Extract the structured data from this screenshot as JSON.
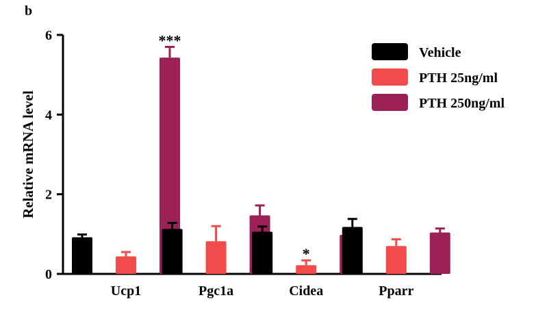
{
  "panel_label": "b",
  "chart_data": {
    "type": "bar",
    "title": "",
    "xlabel": "",
    "ylabel": "Relative mRNA level",
    "ylim": [
      0,
      6
    ],
    "yticks": [
      "0",
      "2",
      "4",
      "6"
    ],
    "categories": [
      "Ucp1",
      "Pgc1a",
      "Cidea",
      "Pparr"
    ],
    "legend_position": "top-right",
    "series": [
      {
        "name": "Vehicle",
        "color": "#000000",
        "values": [
          0.92,
          1.13,
          1.06,
          1.18
        ],
        "errors": [
          0.07,
          0.15,
          0.13,
          0.2
        ]
      },
      {
        "name": "PTH 25ng/ml",
        "color": "#f24b4b",
        "values": [
          0.44,
          0.82,
          0.22,
          0.7
        ],
        "errors": [
          0.11,
          0.38,
          0.12,
          0.17
        ]
      },
      {
        "name": "PTH 250ng/ml",
        "color": "#9b2156",
        "values": [
          5.43,
          1.47,
          0.98,
          1.04
        ],
        "errors": [
          0.27,
          0.25,
          0.09,
          0.1
        ]
      }
    ],
    "annotations": [
      {
        "category": "Ucp1",
        "series": "PTH 250ng/ml",
        "text": "***"
      },
      {
        "category": "Cidea",
        "series": "PTH 25ng/ml",
        "text": "*"
      }
    ]
  }
}
